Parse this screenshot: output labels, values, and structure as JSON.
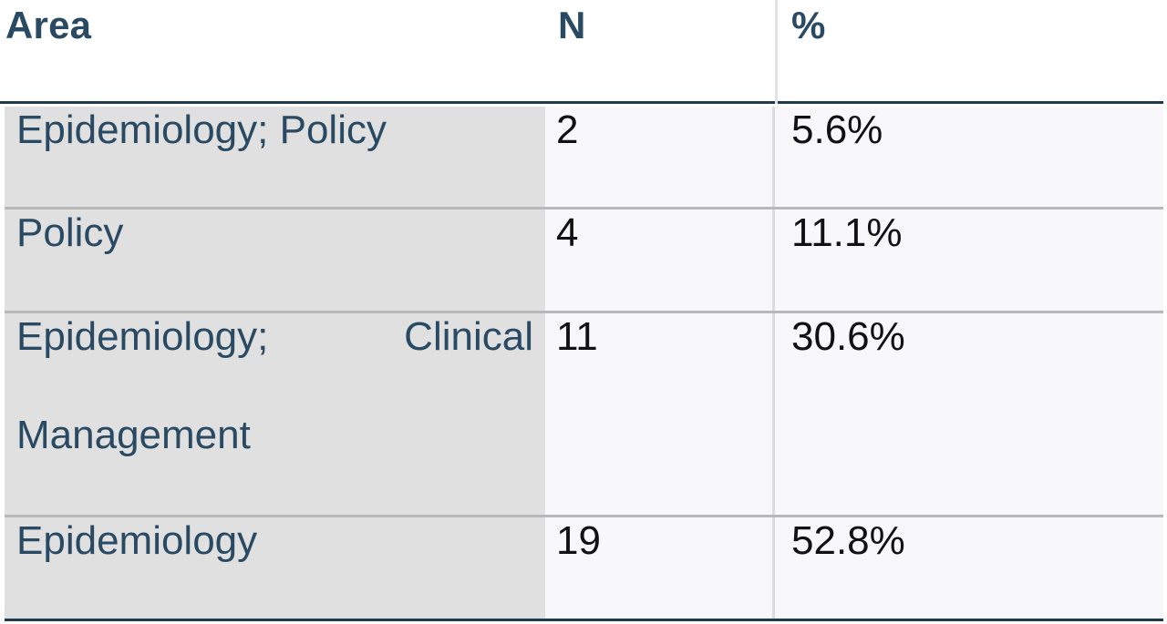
{
  "table": {
    "headers": {
      "area": "Area",
      "n": "N",
      "pct": "%"
    },
    "rows": [
      {
        "area": "Epidemiology; Policy",
        "n": "2",
        "pct": "5.6%"
      },
      {
        "area": "Policy",
        "n": "4",
        "pct": "11.1%"
      },
      {
        "area_line1_a": "Epidemiology;",
        "area_line1_b": "Clinical",
        "area_line2": "Management",
        "n": "11",
        "pct": "30.6%"
      },
      {
        "area": "Epidemiology",
        "n": "19",
        "pct": "52.8%"
      }
    ]
  }
}
